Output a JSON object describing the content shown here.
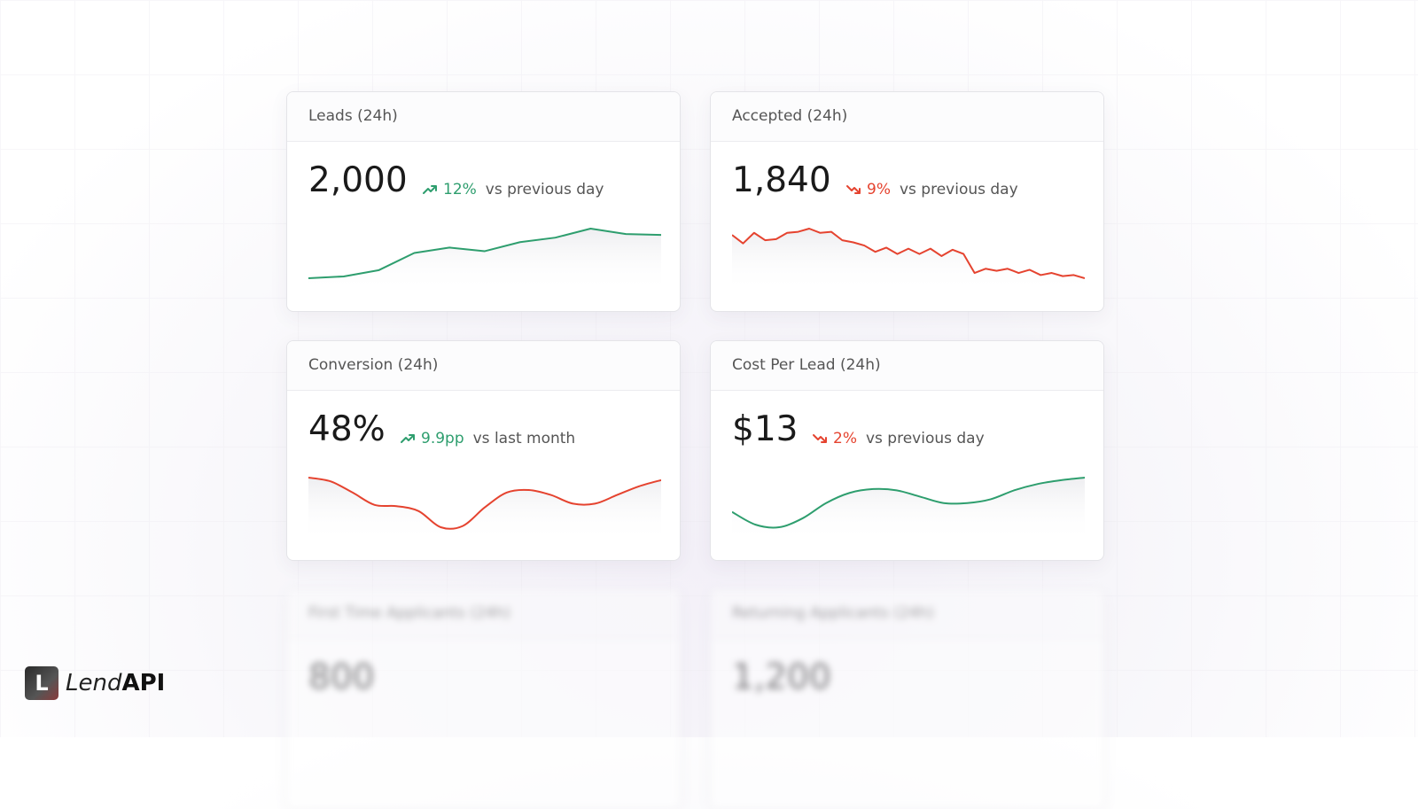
{
  "cards": [
    {
      "title": "Leads (24h)",
      "value": "2,000",
      "change": "12%",
      "direction": "up",
      "color": "#2e9e6e",
      "comparison": "vs previous day",
      "curve": "linear",
      "trend": [
        14,
        16,
        23,
        42,
        48,
        44,
        54,
        59,
        69,
        63,
        62
      ]
    },
    {
      "title": "Accepted (24h)",
      "value": "1,840",
      "change": "9%",
      "direction": "down",
      "color": "#e5432f",
      "comparison": "vs previous day",
      "curve": "linear",
      "trend": [
        60,
        52,
        62,
        55,
        56,
        62,
        63,
        66,
        62,
        63,
        55,
        53,
        50,
        44,
        48,
        42,
        47,
        42,
        47,
        40,
        46,
        42,
        24,
        28,
        26,
        28,
        24,
        27,
        22,
        24,
        21,
        22,
        19
      ]
    },
    {
      "title": "Conversion (24h)",
      "value": "48%",
      "change": "9.9pp",
      "direction": "up",
      "color": "#2e9e6e",
      "line_color": "#e5432f",
      "comparison": "vs last month",
      "curve": "smooth",
      "trend": [
        72,
        69,
        60,
        50,
        49,
        45,
        32,
        33,
        48,
        60,
        62,
        58,
        51,
        51,
        58,
        65,
        70
      ]
    },
    {
      "title": "Cost Per Lead (24h)",
      "value": "$13",
      "change": "2%",
      "direction": "down",
      "color": "#e5432f",
      "line_color": "#2e9e6e",
      "comparison": "vs previous day",
      "curve": "smooth",
      "trend": [
        40,
        30,
        28,
        35,
        47,
        55,
        58,
        57,
        52,
        47,
        47,
        50,
        57,
        62,
        65,
        67
      ]
    },
    {
      "title": "First Time Applicants (24h)",
      "value": "800",
      "blurred": true
    },
    {
      "title": "Returning Applicants (24h)",
      "value": "1,200",
      "blurred": true
    }
  ],
  "logo": {
    "name": "Lend",
    "suffix": "API",
    "mark": "L"
  }
}
